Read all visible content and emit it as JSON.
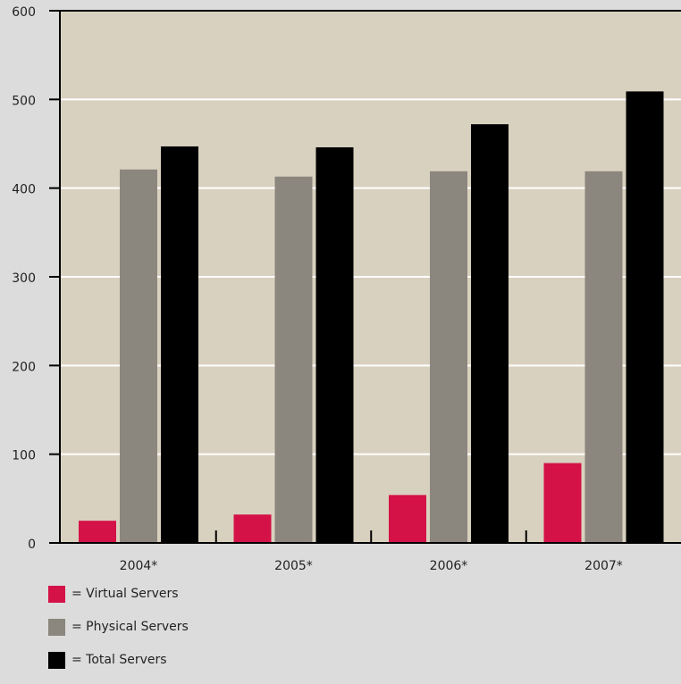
{
  "chart_data": {
    "type": "bar",
    "categories": [
      "2004*",
      "2005*",
      "2006*",
      "2007*"
    ],
    "series": [
      {
        "name": "= Virtual Servers",
        "color": "#d41247",
        "values": [
          25,
          32,
          54,
          90
        ]
      },
      {
        "name": "= Physical Servers",
        "color": "#8b867e",
        "values": [
          421,
          413,
          419,
          419
        ]
      },
      {
        "name": "= Total Servers",
        "color": "#000000",
        "values": [
          447,
          446,
          472,
          509
        ]
      }
    ],
    "y_ticks": [
      "0",
      "100",
      "200",
      "300",
      "400",
      "500",
      "600"
    ],
    "ylim": [
      0,
      600
    ],
    "grid": true,
    "legend_position": "bottom-left",
    "plot_background": "#d9d1bf",
    "page_background": "#dcdcdc"
  }
}
